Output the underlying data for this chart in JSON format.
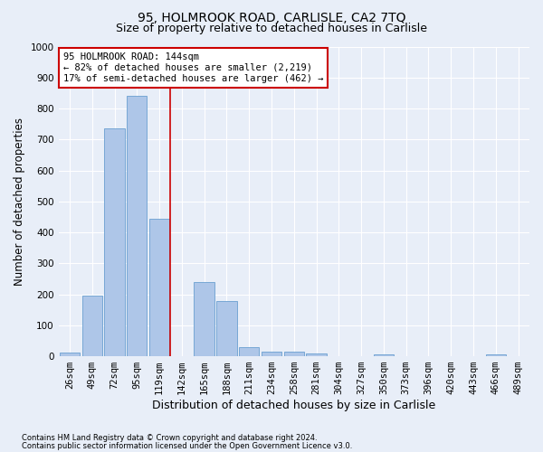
{
  "title": "95, HOLMROOK ROAD, CARLISLE, CA2 7TQ",
  "subtitle": "Size of property relative to detached houses in Carlisle",
  "xlabel": "Distribution of detached houses by size in Carlisle",
  "ylabel": "Number of detached properties",
  "footnote1": "Contains HM Land Registry data © Crown copyright and database right 2024.",
  "footnote2": "Contains public sector information licensed under the Open Government Licence v3.0.",
  "categories": [
    "26sqm",
    "49sqm",
    "72sqm",
    "95sqm",
    "119sqm",
    "142sqm",
    "165sqm",
    "188sqm",
    "211sqm",
    "234sqm",
    "258sqm",
    "281sqm",
    "304sqm",
    "327sqm",
    "350sqm",
    "373sqm",
    "396sqm",
    "420sqm",
    "443sqm",
    "466sqm",
    "489sqm"
  ],
  "values": [
    12,
    195,
    735,
    840,
    445,
    0,
    240,
    178,
    28,
    16,
    14,
    8,
    0,
    0,
    5,
    0,
    0,
    0,
    0,
    5,
    0
  ],
  "bar_color": "#aec6e8",
  "bar_edge_color": "#6a9fd0",
  "annotation_text": "95 HOLMROOK ROAD: 144sqm\n← 82% of detached houses are smaller (2,219)\n17% of semi-detached houses are larger (462) →",
  "annotation_box_facecolor": "#ffffff",
  "annotation_box_edgecolor": "#cc0000",
  "vline_x": 4.5,
  "vline_color": "#cc0000",
  "ylim": [
    0,
    1000
  ],
  "background_color": "#e8eef8",
  "grid_color": "#ffffff",
  "title_fontsize": 10,
  "subtitle_fontsize": 9,
  "tick_fontsize": 7.5,
  "ylabel_fontsize": 8.5,
  "xlabel_fontsize": 9
}
